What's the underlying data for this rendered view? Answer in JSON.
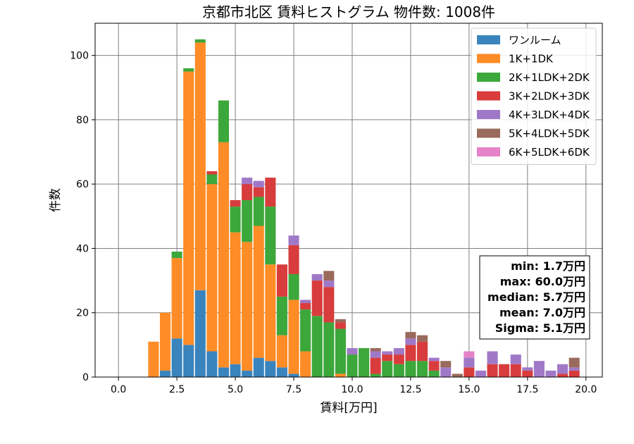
{
  "chart_data": {
    "type": "bar",
    "stacked": true,
    "title": "京都市北区 賃料ヒストグラム 物件数: 1008件",
    "xlabel": "賃料[万円]",
    "ylabel": "件数",
    "xlim": [
      -1.0,
      20.7
    ],
    "ylim": [
      0,
      110
    ],
    "xticks": [
      "0.0",
      "2.5",
      "5.0",
      "7.5",
      "10.0",
      "12.5",
      "15.0",
      "17.5",
      "20.0"
    ],
    "xtick_values": [
      0,
      2.5,
      5,
      7.5,
      10,
      12.5,
      15,
      17.5,
      20
    ],
    "yticks": [
      "0",
      "20",
      "40",
      "60",
      "80",
      "100"
    ],
    "ytick_values": [
      0,
      20,
      40,
      60,
      80,
      100
    ],
    "grid": true,
    "legend_position": "top-right",
    "bin_width": 0.5,
    "x": [
      1.5,
      2.0,
      2.5,
      3.0,
      3.5,
      4.0,
      4.5,
      5.0,
      5.5,
      6.0,
      6.5,
      7.0,
      7.5,
      8.0,
      8.5,
      9.0,
      9.5,
      10.0,
      10.5,
      11.0,
      11.5,
      12.0,
      12.5,
      13.0,
      13.5,
      14.0,
      14.5,
      15.0,
      15.5,
      16.0,
      16.5,
      17.0,
      17.5,
      18.0,
      18.5,
      19.0,
      19.5
    ],
    "series": [
      {
        "name": "ワンルーム",
        "color": "#3a84bd",
        "values": [
          0,
          2,
          12,
          10,
          27,
          8,
          3,
          4,
          2,
          6,
          5,
          3,
          1,
          0,
          0,
          0,
          0,
          0,
          0,
          0,
          0,
          0,
          0,
          0,
          0,
          0,
          0,
          0,
          0,
          0,
          0,
          0,
          0,
          0,
          0,
          0,
          0
        ]
      },
      {
        "name": "1K+1DK",
        "color": "#ff8c26",
        "values": [
          11,
          18,
          25,
          85,
          77,
          52,
          70,
          41,
          40,
          41,
          30,
          10,
          23,
          8,
          0,
          0,
          1,
          0,
          0,
          0,
          0,
          0,
          0,
          0,
          0,
          0,
          0,
          0,
          0,
          0,
          0,
          0,
          0,
          0,
          0,
          0,
          0
        ]
      },
      {
        "name": "2K+1LDK+2DK",
        "color": "#3ca73a",
        "values": [
          0,
          0,
          2,
          1,
          1,
          3,
          13,
          8,
          13,
          9,
          18,
          12,
          8,
          13,
          19,
          17,
          14,
          7,
          9,
          1,
          5,
          4,
          5,
          5,
          2,
          0,
          0,
          0,
          0,
          0,
          0,
          0,
          0,
          0,
          0,
          0,
          0
        ]
      },
      {
        "name": "3K+2LDK+3DK",
        "color": "#d83c3c",
        "values": [
          0,
          0,
          0,
          0,
          0,
          1,
          0,
          2,
          5,
          3,
          9,
          10,
          9,
          2,
          11,
          11,
          2,
          0,
          0,
          5,
          2,
          3,
          5,
          6,
          3,
          0,
          0,
          3,
          0,
          4,
          4,
          4,
          2,
          0,
          0,
          1,
          2
        ]
      },
      {
        "name": "4K+3LDK+4DK",
        "color": "#a078c8",
        "values": [
          0,
          0,
          0,
          0,
          0,
          0,
          0,
          0,
          2,
          2,
          0,
          0,
          3,
          1,
          2,
          2,
          0,
          2,
          0,
          2,
          1,
          2,
          2,
          0,
          1,
          3,
          0,
          3,
          2,
          4,
          0,
          3,
          1,
          5,
          2,
          3,
          1
        ]
      },
      {
        "name": "5K+4LDK+5DK",
        "color": "#9a6a5c",
        "values": [
          0,
          0,
          0,
          0,
          0,
          0,
          0,
          0,
          0,
          0,
          0,
          0,
          0,
          0,
          0,
          3,
          1,
          0,
          0,
          1,
          0,
          0,
          2,
          2,
          0,
          2,
          1,
          0,
          0,
          0,
          0,
          0,
          0,
          0,
          0,
          0,
          3
        ]
      },
      {
        "name": "6K+5LDK+6DK",
        "color": "#e683c8",
        "values": [
          0,
          0,
          0,
          0,
          0,
          0,
          0,
          0,
          0,
          0,
          0,
          0,
          0,
          0,
          0,
          0,
          0,
          0,
          0,
          0,
          0,
          0,
          0,
          0,
          0,
          0,
          0,
          2,
          0,
          0,
          0,
          0,
          0,
          0,
          0,
          0,
          0
        ]
      }
    ],
    "stats": [
      "min: 1.7万円",
      "max: 60.0万円",
      "median: 5.7万円",
      "mean: 7.0万円",
      "Sigma: 5.1万円"
    ]
  }
}
